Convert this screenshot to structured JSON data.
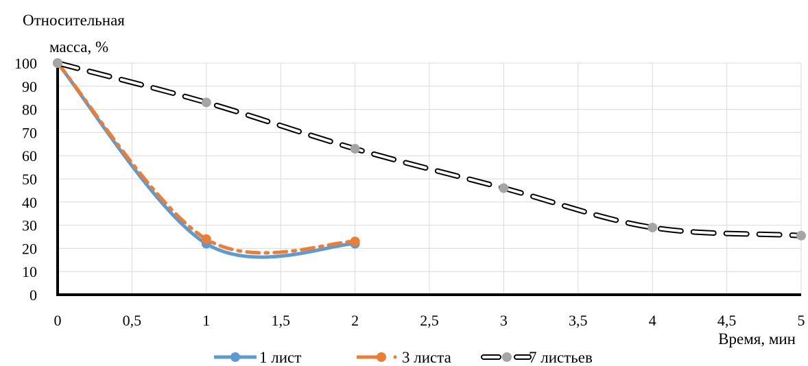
{
  "chart_data": {
    "type": "line",
    "ylabel_line1": "Относительная",
    "ylabel_line2": "масса, %",
    "xlabel": "Время, мин",
    "xlim": [
      0,
      5
    ],
    "ylim": [
      0,
      100
    ],
    "x_ticks": [
      "0",
      "0,5",
      "1",
      "1,5",
      "2",
      "2,5",
      "3",
      "3,5",
      "4",
      "4,5",
      "5"
    ],
    "y_ticks": [
      "0",
      "10",
      "20",
      "30",
      "40",
      "50",
      "60",
      "70",
      "80",
      "90",
      "100"
    ],
    "grid": true,
    "legend_position": "bottom",
    "series": [
      {
        "name": "1 лист",
        "color": "#5b9bd5",
        "style": "solid-smooth",
        "x": [
          0,
          1,
          2
        ],
        "y": [
          100,
          22,
          22
        ]
      },
      {
        "name": "3 листа",
        "color": "#ed7d31",
        "style": "dash-dot-smooth",
        "x": [
          0,
          1,
          2
        ],
        "y": [
          100,
          24,
          23
        ]
      },
      {
        "name": "7 листьев",
        "color": "#000000",
        "marker_color": "#a5a5a5",
        "style": "long-dash-hollow-smooth",
        "x": [
          0,
          1,
          2,
          3,
          4,
          5
        ],
        "y": [
          100,
          83,
          63,
          46,
          29,
          25.5
        ]
      }
    ]
  }
}
